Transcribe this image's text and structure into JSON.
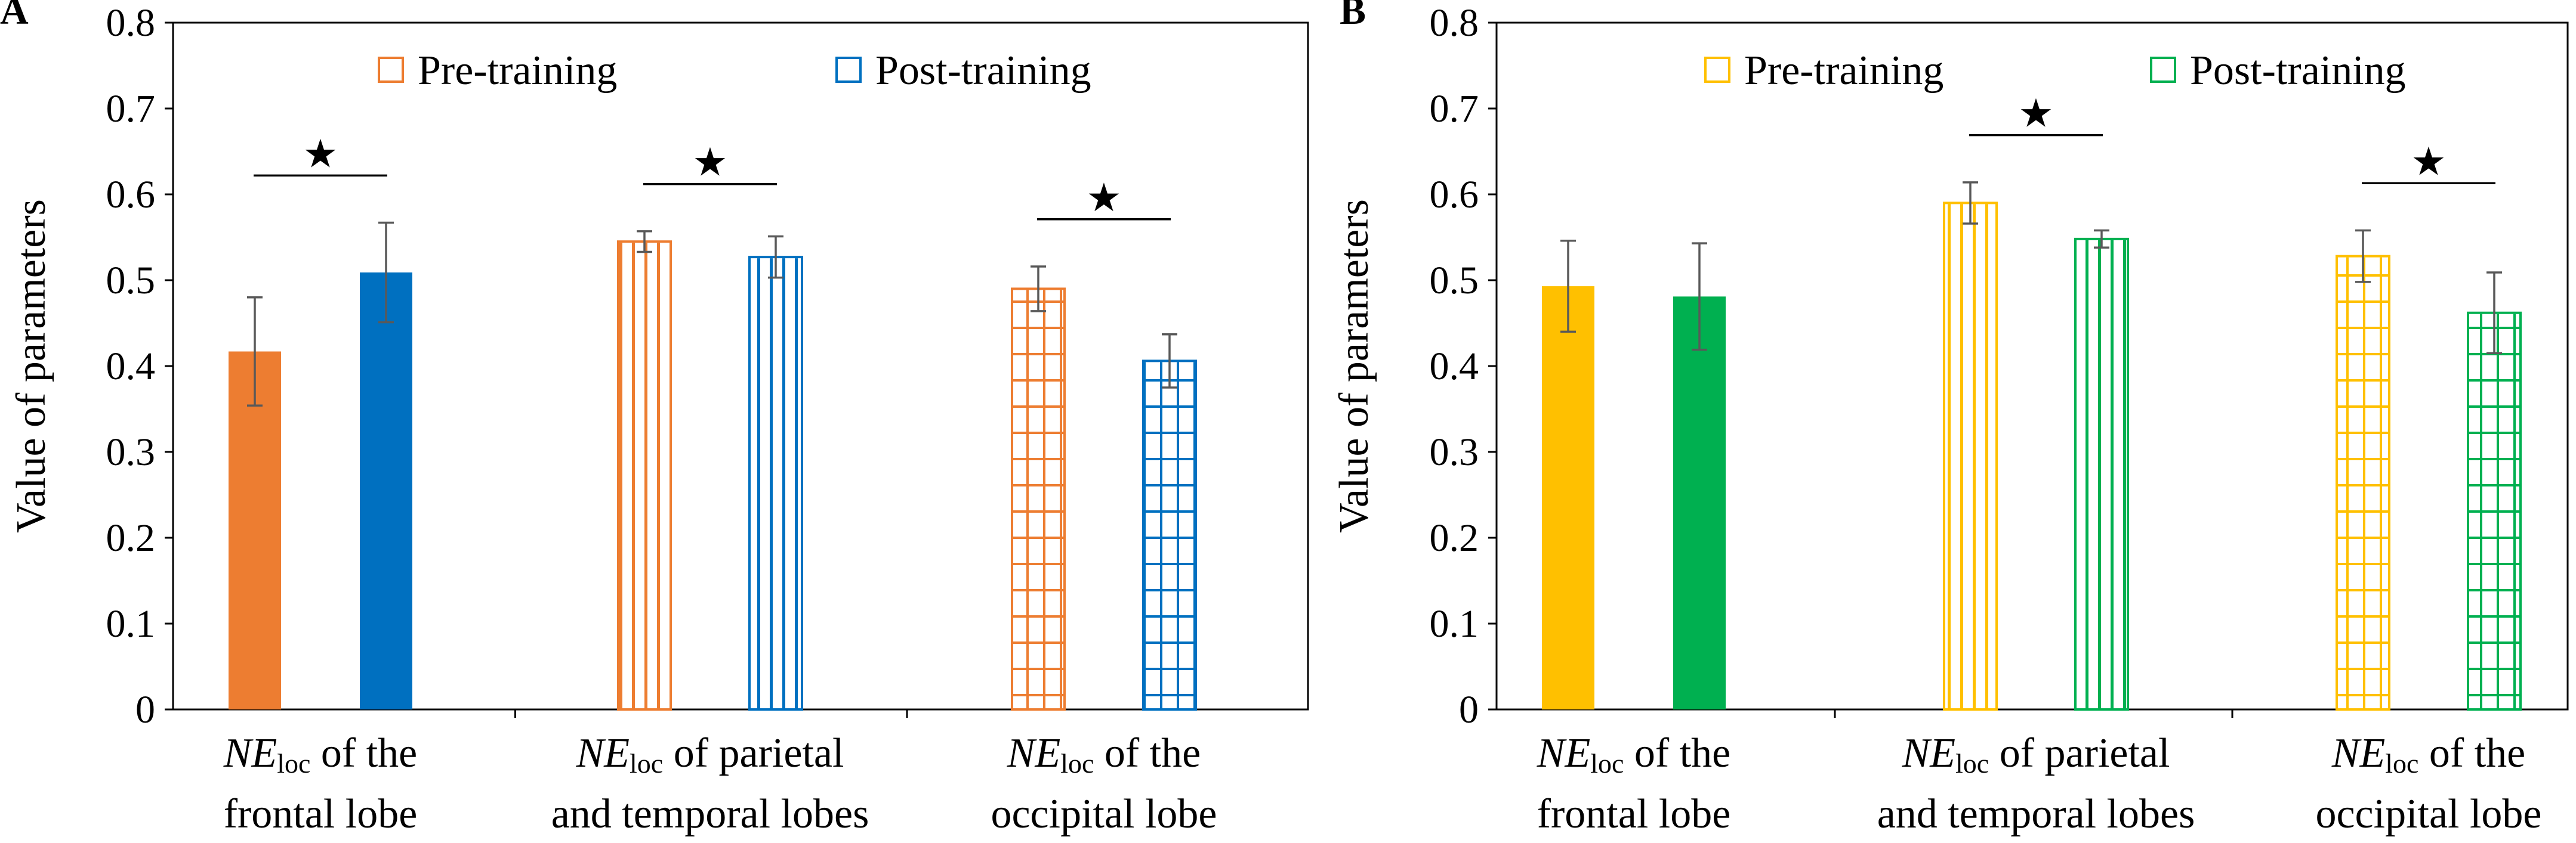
{
  "chart_data": [
    {
      "panel_label": "A",
      "type": "bar",
      "ylabel": "Value of parameters",
      "ylim": [
        0,
        0.8
      ],
      "yticks": [
        "0",
        "0.1",
        "0.2",
        "0.3",
        "0.4",
        "0.5",
        "0.6",
        "0.7",
        "0.8"
      ],
      "ytick_values": [
        0,
        0.1,
        0.2,
        0.3,
        0.4,
        0.5,
        0.6,
        0.7,
        0.8
      ],
      "categories": [
        {
          "prefix": "NE",
          "subscript": "loc",
          "line1_rest": " of the",
          "line2": "frontal lobe"
        },
        {
          "prefix": "NE",
          "subscript": "loc",
          "line1_rest": " of parietal",
          "line2": "and temporal lobes"
        },
        {
          "prefix": "NE",
          "subscript": "loc",
          "line1_rest": " of the",
          "line2": "occipital lobe"
        }
      ],
      "patterns": [
        "solid",
        "vertical",
        "grid"
      ],
      "series": [
        {
          "name": "Pre-training",
          "color": "#ED7D31",
          "values": [
            0.417,
            0.545,
            0.49
          ],
          "errors": [
            0.063,
            0.012,
            0.026
          ]
        },
        {
          "name": "Post-training",
          "color": "#0070C0",
          "values": [
            0.509,
            0.527,
            0.406
          ],
          "errors": [
            0.058,
            0.024,
            0.031
          ]
        }
      ],
      "significance": [
        true,
        true,
        true
      ],
      "significance_marker": "★",
      "legend": "top"
    },
    {
      "panel_label": "B",
      "type": "bar",
      "ylabel": "Value of parameters",
      "ylim": [
        0,
        0.8
      ],
      "yticks": [
        "0",
        "0.1",
        "0.2",
        "0.3",
        "0.4",
        "0.5",
        "0.6",
        "0.7",
        "0.8"
      ],
      "ytick_values": [
        0,
        0.1,
        0.2,
        0.3,
        0.4,
        0.5,
        0.6,
        0.7,
        0.8
      ],
      "categories": [
        {
          "prefix": "NE",
          "subscript": "loc",
          "line1_rest": " of the",
          "line2": "frontal lobe"
        },
        {
          "prefix": "NE",
          "subscript": "loc",
          "line1_rest": " of parietal",
          "line2": "and temporal lobes"
        },
        {
          "prefix": "NE",
          "subscript": "loc",
          "line1_rest": " of the",
          "line2": "occipital lobe"
        }
      ],
      "patterns": [
        "solid",
        "vertical",
        "grid"
      ],
      "series": [
        {
          "name": "Pre-training",
          "color": "#FFC000",
          "values": [
            0.493,
            0.59,
            0.528
          ],
          "errors": [
            0.053,
            0.024,
            0.03
          ]
        },
        {
          "name": "Post-training",
          "color": "#00B050",
          "values": [
            0.481,
            0.548,
            0.462
          ],
          "errors": [
            0.062,
            0.01,
            0.047
          ]
        }
      ],
      "significance": [
        false,
        true,
        true
      ],
      "significance_marker": "★",
      "legend": "top"
    }
  ]
}
